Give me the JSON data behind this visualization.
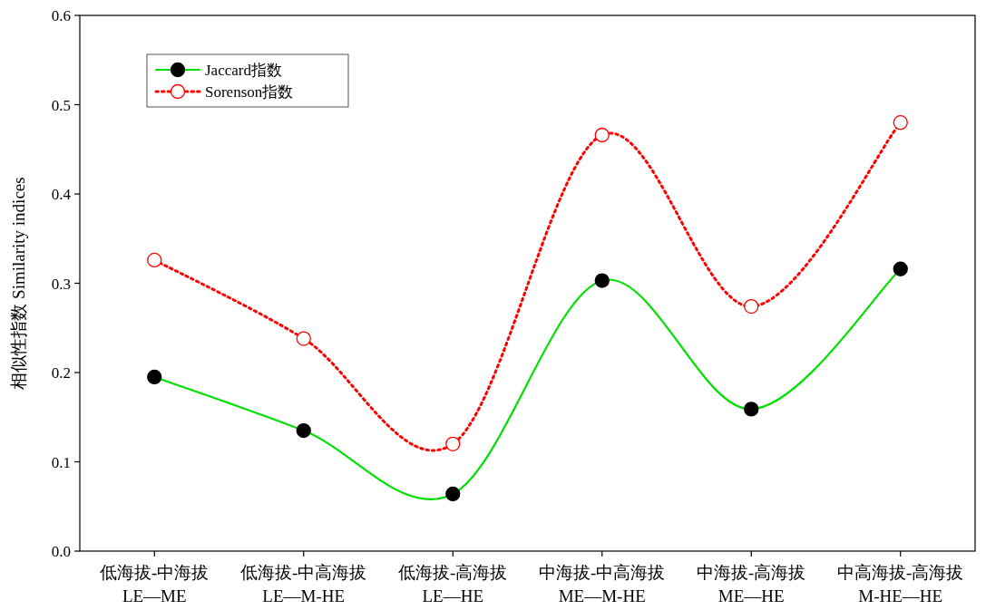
{
  "chart_data": {
    "type": "line",
    "ylabel": "相似性指数 Similarity indices",
    "categories": [
      "低海拔-中海拔 LE—ME",
      "低海拔-中高海拔 LE—M-HE",
      "低海拔-高海拔 LE—HE",
      "中海拔-中高海拔 ME—M-HE",
      "中海拔-高海拔 ME—HE",
      "中高海拔-高海拔 M-HE—HE"
    ],
    "series": [
      {
        "name": "Jaccard指数",
        "color": "#00e000",
        "values": [
          0.195,
          0.135,
          0.064,
          0.303,
          0.159,
          0.316
        ],
        "line_style": "solid"
      },
      {
        "name": "Sorenson指数",
        "color": "#ff0000",
        "values": [
          0.326,
          0.238,
          0.12,
          0.466,
          0.274,
          0.48
        ],
        "line_style": "dotted"
      }
    ],
    "ylim": [
      0,
      0.6
    ],
    "yticks": [
      {
        "value": 0,
        "label": "0.0"
      },
      0.1,
      0.2,
      0.3,
      0.4,
      0.5,
      0.6
    ],
    "marker": "circle",
    "legend": "top left",
    "grid": false
  }
}
